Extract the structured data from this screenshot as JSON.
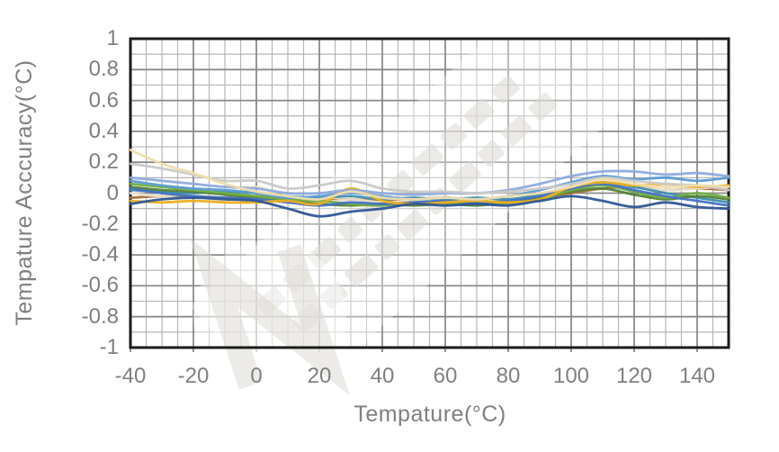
{
  "colors": {
    "background": "#ffffff",
    "plot_border": "#1b1b1b",
    "grid_major": "#8a8a8a",
    "grid_minor": "#b5b5b5",
    "axis_text": "#7f7f7f",
    "watermark": "#dcd8d2"
  },
  "watermark": {
    "present": true,
    "legible": false,
    "description": "faint diagonal gray logo and text band across plot"
  },
  "chart_data": {
    "type": "line",
    "title": "",
    "xlabel": "Tempature(°C)",
    "ylabel": "Tempature Acccuracy(°C)",
    "xlim": [
      -40,
      150
    ],
    "ylim": [
      -1,
      1
    ],
    "x_tick_values": [
      -40,
      -20,
      0,
      20,
      40,
      60,
      80,
      100,
      120,
      140
    ],
    "x_tick_labels": [
      "-40",
      "-20",
      "0",
      "20",
      "40",
      "60",
      "80",
      "100",
      "120",
      "140"
    ],
    "y_tick_values": [
      1,
      0.8,
      0.6,
      0.4,
      0.2,
      0,
      -0.2,
      -0.4,
      -0.6,
      -0.8,
      -1
    ],
    "y_tick_labels": [
      "1",
      "0.8",
      "0.6",
      "0.4",
      "0.2",
      "0",
      "-0.2",
      "-0.4",
      "-0.6",
      "-0.8",
      "-1"
    ],
    "x_minor_step": 5,
    "x_major_step": 20,
    "y_minor_step": 0.1,
    "y_major_step": 0.2,
    "grid": "major+minor",
    "legend_position": "none",
    "x": [
      -40,
      -30,
      -20,
      -10,
      0,
      10,
      20,
      30,
      40,
      50,
      60,
      70,
      80,
      90,
      100,
      110,
      120,
      130,
      140,
      150
    ],
    "series": [
      {
        "name": "brown",
        "color": "#A9703A",
        "values": [
          -0.03,
          -0.02,
          -0.02,
          -0.03,
          -0.02,
          -0.04,
          -0.05,
          -0.04,
          -0.05,
          -0.05,
          -0.05,
          -0.05,
          -0.05,
          -0.03,
          0.0,
          0.03,
          0.04,
          0.02,
          0.03,
          0.02
        ]
      },
      {
        "name": "ivory",
        "color": "#EAE2CE",
        "values": [
          0.0,
          -0.02,
          -0.01,
          -0.05,
          0.04,
          -0.04,
          -0.06,
          -0.04,
          -0.06,
          -0.05,
          -0.04,
          -0.05,
          -0.04,
          -0.02,
          0.02,
          0.06,
          0.04,
          0.02,
          0.03,
          0.05
        ]
      },
      {
        "name": "teal",
        "color": "#3E8FAE",
        "values": [
          0.02,
          0.01,
          0.0,
          0.01,
          0.0,
          -0.02,
          -0.03,
          -0.02,
          -0.04,
          -0.03,
          -0.04,
          -0.03,
          -0.04,
          -0.01,
          0.04,
          0.07,
          0.04,
          0.0,
          -0.03,
          -0.06
        ]
      },
      {
        "name": "dark-green",
        "color": "#548235",
        "values": [
          0.04,
          0.02,
          0.01,
          -0.01,
          -0.03,
          -0.05,
          -0.07,
          -0.08,
          -0.07,
          -0.08,
          -0.07,
          -0.08,
          -0.06,
          -0.03,
          0.01,
          0.03,
          -0.01,
          -0.04,
          -0.02,
          -0.04
        ]
      },
      {
        "name": "green",
        "color": "#70AD47",
        "values": [
          0.06,
          0.04,
          0.02,
          0.0,
          -0.02,
          -0.04,
          -0.05,
          -0.07,
          -0.08,
          -0.06,
          -0.07,
          -0.06,
          -0.07,
          -0.04,
          0.02,
          0.05,
          0.01,
          -0.03,
          0.0,
          -0.03
        ]
      },
      {
        "name": "steel-blue",
        "color": "#4472C4",
        "values": [
          0.03,
          0.0,
          -0.02,
          -0.03,
          -0.04,
          -0.06,
          -0.08,
          -0.06,
          -0.07,
          -0.06,
          -0.05,
          -0.06,
          -0.05,
          -0.02,
          0.03,
          0.06,
          0.02,
          -0.02,
          -0.05,
          -0.08
        ]
      },
      {
        "name": "gold",
        "color": "#EDAF1F",
        "values": [
          -0.05,
          -0.06,
          -0.05,
          -0.06,
          -0.06,
          -0.05,
          -0.07,
          0.03,
          -0.05,
          -0.07,
          -0.06,
          -0.05,
          -0.06,
          -0.04,
          0.04,
          0.07,
          0.05,
          0.06,
          0.04,
          0.05
        ]
      },
      {
        "name": "medium-blue",
        "color": "#5B9BD5",
        "values": [
          0.08,
          0.05,
          0.03,
          0.02,
          0.0,
          -0.03,
          -0.02,
          0.0,
          -0.02,
          -0.04,
          -0.03,
          -0.04,
          -0.02,
          0.02,
          0.07,
          0.11,
          0.09,
          0.1,
          0.08,
          0.1
        ]
      },
      {
        "name": "periwinkle",
        "color": "#8FAADC",
        "values": [
          0.1,
          0.08,
          0.06,
          0.04,
          0.03,
          0.0,
          0.0,
          0.02,
          0.0,
          -0.01,
          0.0,
          0.0,
          0.02,
          0.06,
          0.11,
          0.14,
          0.14,
          0.12,
          0.13,
          0.11
        ]
      },
      {
        "name": "silver",
        "color": "#C9C9C9",
        "values": [
          0.19,
          0.16,
          0.12,
          0.08,
          0.08,
          0.03,
          0.05,
          0.08,
          0.03,
          0.01,
          0.01,
          0.0,
          0.01,
          0.03,
          0.06,
          0.1,
          0.08,
          0.06,
          0.05,
          0.02
        ]
      },
      {
        "name": "navy",
        "color": "#2E5596",
        "values": [
          -0.07,
          -0.04,
          -0.03,
          -0.04,
          -0.05,
          -0.1,
          -0.15,
          -0.12,
          -0.1,
          -0.07,
          -0.08,
          -0.07,
          -0.08,
          -0.05,
          -0.02,
          -0.05,
          -0.09,
          -0.06,
          -0.09,
          -0.1
        ]
      },
      {
        "name": "wheat",
        "color": "#F1DCAC",
        "values": [
          0.28,
          0.19,
          0.13,
          0.06,
          0.01,
          -0.02,
          -0.04,
          0.01,
          -0.03,
          -0.04,
          -0.03,
          -0.04,
          -0.02,
          0.0,
          0.04,
          0.09,
          0.06,
          0.04,
          0.05,
          0.04
        ]
      }
    ]
  }
}
